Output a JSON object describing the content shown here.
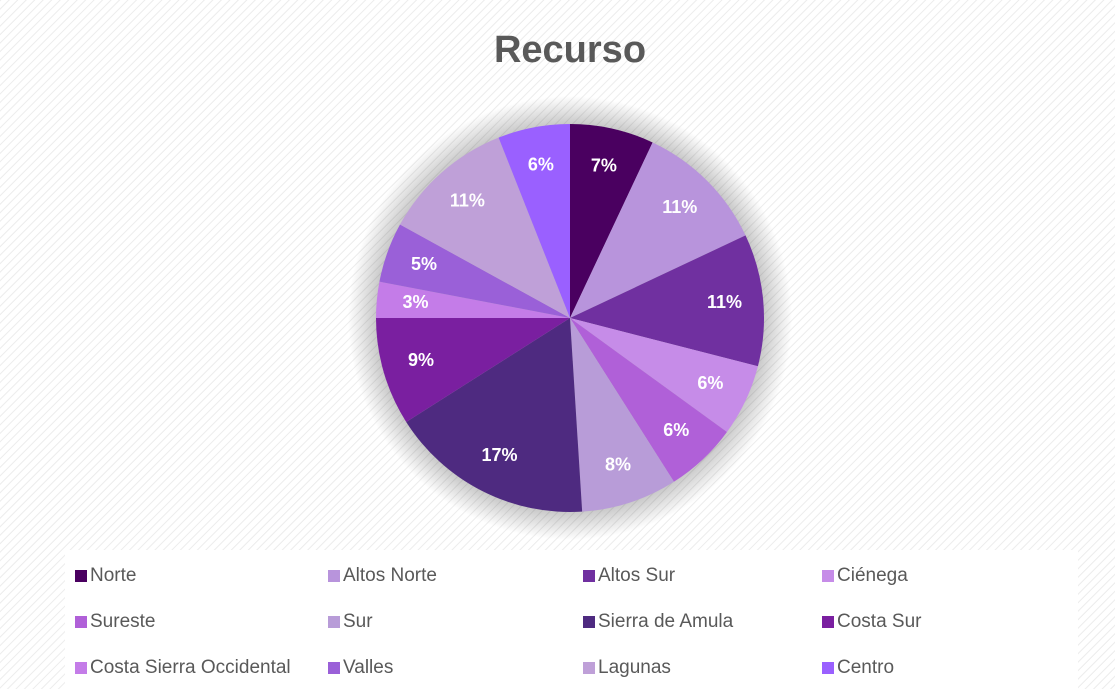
{
  "chart_data": {
    "type": "pie",
    "title": "Recurso",
    "categories": [
      "Norte",
      "Altos Norte",
      "Altos Sur",
      "Ciénega",
      "Sureste",
      "Sur",
      "Sierra de Amula",
      "Costa Sur",
      "Costa Sierra Occidental",
      "Valles",
      "Lagunas",
      "Centro"
    ],
    "values": [
      7,
      11,
      11,
      6,
      6,
      8,
      17,
      9,
      3,
      5,
      11,
      6
    ],
    "value_labels": [
      "7%",
      "11%",
      "11%",
      "6%",
      "6%",
      "8%",
      "17%",
      "9%",
      "3%",
      "5%",
      "11%",
      "6%"
    ],
    "colors": [
      "#4a0060",
      "#b894dc",
      "#7030a0",
      "#c68ce8",
      "#b060d8",
      "#b89cd8",
      "#4e2a80",
      "#7a1fa0",
      "#c47ce8",
      "#9a60d8",
      "#bfa0d8",
      "#9a60ff"
    ],
    "legend": "bottom"
  }
}
